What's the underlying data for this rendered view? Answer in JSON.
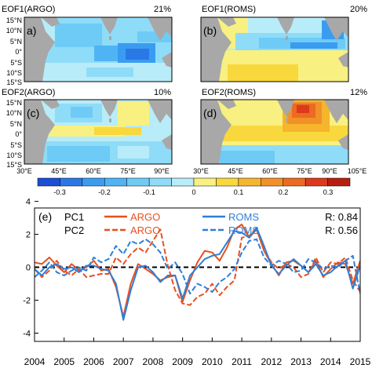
{
  "chart_data": [
    {
      "type": "heatmap",
      "panels": [
        {
          "tag": "a)",
          "title": "EOF1(ARGO)",
          "percent": "21%"
        },
        {
          "tag": "(b)",
          "title": "EOF1(ROMS)",
          "percent": "20%"
        },
        {
          "tag": "(c)",
          "title": "EOF2(ARGO)",
          "percent": "10%"
        },
        {
          "tag": "(d)",
          "title": "EOF2(ROMS)",
          "percent": "12%"
        }
      ],
      "lat_ticks": [
        "15°N",
        "10°N",
        "5°N",
        "0°",
        "5°S",
        "10°S",
        "15°S"
      ],
      "lon_ticks": [
        "30°E",
        "45°E",
        "60°E",
        "75°E",
        "90°E",
        "105°E"
      ],
      "xlim": [
        30,
        105
      ],
      "ylim": [
        -15,
        15
      ],
      "colorbar": {
        "ticks": [
          "-0.3",
          "-0.2",
          "-0.1",
          "0",
          "0.1",
          "0.2",
          "0.3"
        ],
        "bins": [
          -0.35,
          -0.3,
          -0.25,
          -0.2,
          -0.15,
          -0.1,
          -0.05,
          0,
          0.05,
          0.1,
          0.15,
          0.2,
          0.25,
          0.3,
          0.35
        ],
        "colors": [
          "#1a4fd6",
          "#2a78e6",
          "#3a9cf0",
          "#4fb4f4",
          "#6ecbf6",
          "#8fdcf8",
          "#b8ecf8",
          "#f8f080",
          "#f9d83e",
          "#f5b52c",
          "#f29128",
          "#ec6a22",
          "#dc3a1a",
          "#b81e10"
        ]
      }
    },
    {
      "type": "line",
      "tag": "(e)",
      "x": [
        2004.0,
        2004.25,
        2004.5,
        2004.75,
        2005.0,
        2005.25,
        2005.5,
        2005.75,
        2006.0,
        2006.25,
        2006.5,
        2006.75,
        2007.0,
        2007.25,
        2007.5,
        2007.75,
        2008.0,
        2008.25,
        2008.5,
        2008.75,
        2009.0,
        2009.25,
        2009.5,
        2009.75,
        2010.0,
        2010.25,
        2010.5,
        2010.75,
        2011.0,
        2011.25,
        2011.5,
        2011.75,
        2012.0,
        2012.25,
        2012.5,
        2012.75,
        2013.0,
        2013.25,
        2013.5,
        2013.75,
        2014.0,
        2014.25,
        2014.5,
        2014.75,
        2015.0
      ],
      "series": [
        {
          "name": "ARGO",
          "group": "PC1",
          "color": "#e8501e",
          "dash": "solid",
          "values": [
            0.3,
            0.2,
            0.6,
            0.1,
            -0.3,
            0.2,
            -0.2,
            0.0,
            0.4,
            -0.2,
            -0.1,
            -1.2,
            -3.0,
            -1.0,
            0.2,
            -0.1,
            -0.4,
            -0.8,
            -0.6,
            -0.5,
            -2.1,
            -0.8,
            0.3,
            1.0,
            0.9,
            0.4,
            1.2,
            2.3,
            2.6,
            1.8,
            2.3,
            1.0,
            0.2,
            -0.5,
            0.3,
            0.4,
            0.1,
            -0.3,
            0.4,
            -0.6,
            -0.1,
            0.3,
            0.2,
            -1.0,
            0.4
          ]
        },
        {
          "name": "ARGO",
          "group": "PC2",
          "color": "#e8501e",
          "dash": "dashed",
          "values": [
            -0.1,
            -0.6,
            -0.2,
            0.4,
            -0.2,
            -0.5,
            -0.1,
            -0.6,
            -0.5,
            -0.4,
            -0.4,
            0.6,
            0.2,
            0.8,
            1.2,
            0.9,
            1.6,
            2.3,
            0.1,
            -1.4,
            -2.2,
            -2.3,
            -1.8,
            -1.6,
            -1.0,
            -1.7,
            -1.2,
            -0.8,
            1.8,
            1.9,
            2.4,
            1.1,
            0.3,
            -0.1,
            0.2,
            0.0,
            -0.6,
            -0.4,
            0.6,
            -0.3,
            0.3,
            0.2,
            0.6,
            -0.8,
            -1.5
          ]
        },
        {
          "name": "ROMS",
          "group": "PC1",
          "color": "#2f7fd8",
          "dash": "solid",
          "values": [
            -0.1,
            -0.5,
            0.0,
            0.2,
            -0.1,
            0.0,
            -0.3,
            0.1,
            0.1,
            -0.1,
            -0.2,
            -1.0,
            -3.2,
            -1.4,
            0.0,
            0.1,
            -0.3,
            -0.9,
            -0.5,
            -0.5,
            -1.9,
            -0.5,
            0.0,
            0.5,
            0.7,
            0.8,
            1.5,
            2.2,
            2.1,
            1.8,
            2.4,
            1.3,
            0.1,
            -0.4,
            0.1,
            0.5,
            0.1,
            -0.3,
            0.2,
            -0.5,
            -0.3,
            0.1,
            0.4,
            -1.3,
            0.1
          ]
        },
        {
          "name": "ROMS",
          "group": "PC2",
          "color": "#2f7fd8",
          "dash": "dashed",
          "values": [
            -0.6,
            -0.2,
            0.3,
            -0.3,
            -0.5,
            -0.2,
            0.0,
            -0.2,
            0.6,
            0.3,
            0.5,
            1.3,
            0.8,
            1.6,
            1.4,
            1.7,
            1.4,
            0.9,
            -0.1,
            0.3,
            -0.4,
            -1.6,
            -1.0,
            -1.2,
            -1.5,
            -0.9,
            -0.6,
            -0.1,
            0.9,
            1.6,
            1.7,
            0.6,
            0.1,
            0.4,
            0.2,
            -0.3,
            -0.2,
            0.5,
            0.3,
            -0.1,
            0.1,
            0.0,
            0.4,
            0.7,
            -1.6
          ]
        }
      ],
      "legend": [
        {
          "row": "PC1",
          "argo": "ARGO",
          "roms": "ROMS",
          "r": "R: 0.84"
        },
        {
          "row": "PC2",
          "argo": "ARGO",
          "roms": "ROMS",
          "r": "R: 0.56"
        }
      ],
      "x_ticks": [
        "2004",
        "2005",
        "2006",
        "2007",
        "2008",
        "2009",
        "2010",
        "2011",
        "2012",
        "2013",
        "2014",
        "2015"
      ],
      "y_ticks": [
        "4",
        "2",
        "0",
        "-2",
        "-4"
      ],
      "xlim": [
        2004,
        2015
      ],
      "ylim": [
        -4.5,
        3.6
      ],
      "zero_line": true
    }
  ]
}
